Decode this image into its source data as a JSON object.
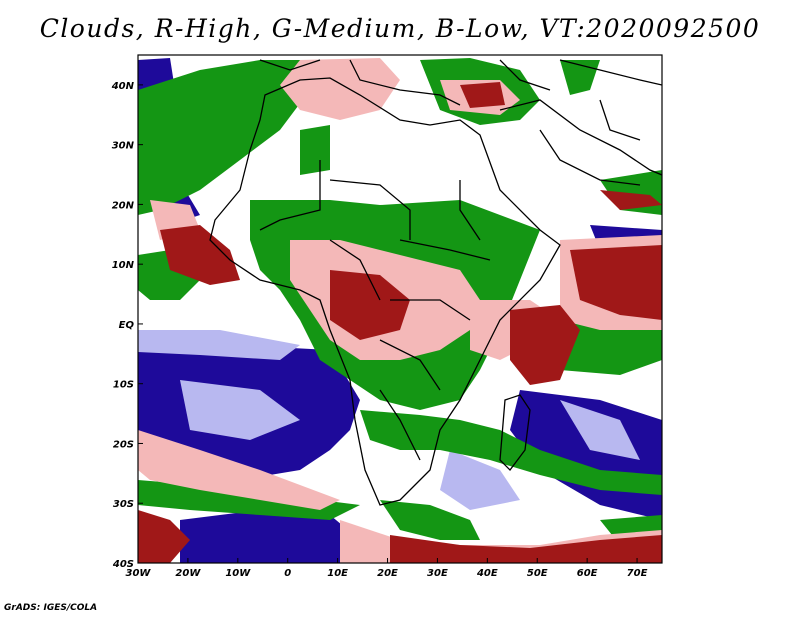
{
  "title": "Clouds, R-High, G-Medium, B-Low, VT:2020092500",
  "credit": "GrADS: IGES/COLA",
  "map": {
    "lon_range": [
      -30,
      75
    ],
    "lat_range": [
      -40,
      45
    ],
    "lon_ticks": [
      {
        "value": -30,
        "label": "30W"
      },
      {
        "value": -20,
        "label": "20W"
      },
      {
        "value": -10,
        "label": "10W"
      },
      {
        "value": 0,
        "label": "0"
      },
      {
        "value": 10,
        "label": "10E"
      },
      {
        "value": 20,
        "label": "20E"
      },
      {
        "value": 30,
        "label": "30E"
      },
      {
        "value": 40,
        "label": "40E"
      },
      {
        "value": 50,
        "label": "50E"
      },
      {
        "value": 60,
        "label": "60E"
      },
      {
        "value": 70,
        "label": "70E"
      }
    ],
    "lat_ticks": [
      {
        "value": 40,
        "label": "40N"
      },
      {
        "value": 30,
        "label": "30N"
      },
      {
        "value": 20,
        "label": "20N"
      },
      {
        "value": 10,
        "label": "10N"
      },
      {
        "value": 0,
        "label": "EQ"
      },
      {
        "value": -10,
        "label": "10S"
      },
      {
        "value": -20,
        "label": "20S"
      },
      {
        "value": -30,
        "label": "30S"
      },
      {
        "value": -40,
        "label": "40S"
      }
    ],
    "colors": {
      "high_dark": "#a01818",
      "high_light": "#f4b8b8",
      "medium": "#149614",
      "low_dark": "#1e0a9a",
      "low_light": "#b8b8f0",
      "border": "#000000"
    }
  }
}
